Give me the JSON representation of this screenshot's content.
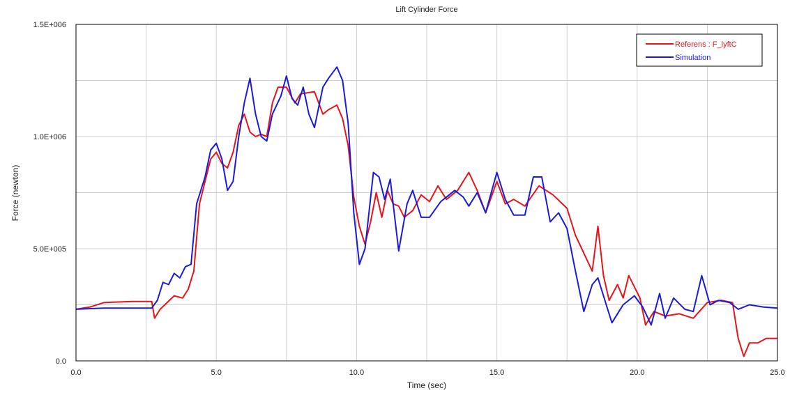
{
  "chart_data": {
    "type": "line",
    "title": "Lift Cylinder Force",
    "xlabel": "Time (sec)",
    "ylabel": "Force (newton)",
    "xlim": [
      0,
      25
    ],
    "ylim": [
      0,
      1500000
    ],
    "x_ticks": [
      0,
      5,
      10,
      15,
      20,
      25
    ],
    "x_tick_labels": [
      "0.0",
      "5.0",
      "10.0",
      "15.0",
      "20.0",
      "25.0"
    ],
    "y_ticks": [
      0,
      500000,
      1000000,
      1500000
    ],
    "y_tick_labels": [
      "0.0",
      "5.0E+005",
      "1.0E+006",
      "1.5E+006"
    ],
    "grid": true,
    "legend_position": "top-right",
    "series": [
      {
        "name": "Referens : F_lyftC",
        "color": "#e8141a",
        "points": [
          [
            0,
            230000
          ],
          [
            0.5,
            240000
          ],
          [
            1.0,
            260000
          ],
          [
            2.0,
            265000
          ],
          [
            2.7,
            265000
          ],
          [
            2.8,
            190000
          ],
          [
            3.0,
            230000
          ],
          [
            3.5,
            290000
          ],
          [
            3.8,
            280000
          ],
          [
            4.0,
            320000
          ],
          [
            4.2,
            400000
          ],
          [
            4.4,
            700000
          ],
          [
            4.6,
            800000
          ],
          [
            4.8,
            900000
          ],
          [
            5.0,
            930000
          ],
          [
            5.2,
            880000
          ],
          [
            5.4,
            860000
          ],
          [
            5.6,
            930000
          ],
          [
            5.8,
            1050000
          ],
          [
            6.0,
            1100000
          ],
          [
            6.2,
            1020000
          ],
          [
            6.4,
            1000000
          ],
          [
            6.6,
            1010000
          ],
          [
            6.8,
            1000000
          ],
          [
            7.0,
            1150000
          ],
          [
            7.2,
            1220000
          ],
          [
            7.5,
            1220000
          ],
          [
            7.8,
            1150000
          ],
          [
            8.0,
            1190000
          ],
          [
            8.5,
            1200000
          ],
          [
            8.8,
            1100000
          ],
          [
            9.0,
            1120000
          ],
          [
            9.3,
            1140000
          ],
          [
            9.5,
            1080000
          ],
          [
            9.7,
            960000
          ],
          [
            9.9,
            730000
          ],
          [
            10.1,
            600000
          ],
          [
            10.3,
            520000
          ],
          [
            10.5,
            620000
          ],
          [
            10.7,
            750000
          ],
          [
            10.9,
            640000
          ],
          [
            11.1,
            760000
          ],
          [
            11.3,
            700000
          ],
          [
            11.5,
            690000
          ],
          [
            11.7,
            640000
          ],
          [
            12.0,
            670000
          ],
          [
            12.3,
            740000
          ],
          [
            12.6,
            710000
          ],
          [
            12.9,
            780000
          ],
          [
            13.2,
            720000
          ],
          [
            13.6,
            760000
          ],
          [
            14.0,
            840000
          ],
          [
            14.3,
            760000
          ],
          [
            14.6,
            660000
          ],
          [
            15.0,
            800000
          ],
          [
            15.3,
            700000
          ],
          [
            15.6,
            720000
          ],
          [
            16.0,
            690000
          ],
          [
            16.5,
            780000
          ],
          [
            17.0,
            740000
          ],
          [
            17.5,
            680000
          ],
          [
            17.8,
            560000
          ],
          [
            18.1,
            480000
          ],
          [
            18.4,
            400000
          ],
          [
            18.6,
            600000
          ],
          [
            18.8,
            380000
          ],
          [
            19.0,
            270000
          ],
          [
            19.3,
            340000
          ],
          [
            19.5,
            280000
          ],
          [
            19.7,
            380000
          ],
          [
            19.9,
            330000
          ],
          [
            20.1,
            280000
          ],
          [
            20.3,
            160000
          ],
          [
            20.6,
            220000
          ],
          [
            21.0,
            200000
          ],
          [
            21.5,
            210000
          ],
          [
            22.0,
            190000
          ],
          [
            22.5,
            260000
          ],
          [
            23.0,
            270000
          ],
          [
            23.4,
            260000
          ],
          [
            23.6,
            100000
          ],
          [
            23.8,
            20000
          ],
          [
            24.0,
            80000
          ],
          [
            24.3,
            80000
          ],
          [
            24.6,
            100000
          ],
          [
            25.0,
            100000
          ]
        ]
      },
      {
        "name": "Simulation",
        "color": "#1a1adc",
        "points": [
          [
            0,
            230000
          ],
          [
            1.0,
            235000
          ],
          [
            2.0,
            235000
          ],
          [
            2.7,
            235000
          ],
          [
            2.9,
            270000
          ],
          [
            3.1,
            350000
          ],
          [
            3.3,
            340000
          ],
          [
            3.5,
            390000
          ],
          [
            3.7,
            370000
          ],
          [
            3.9,
            420000
          ],
          [
            4.1,
            430000
          ],
          [
            4.3,
            700000
          ],
          [
            4.6,
            820000
          ],
          [
            4.8,
            940000
          ],
          [
            5.0,
            970000
          ],
          [
            5.2,
            900000
          ],
          [
            5.4,
            760000
          ],
          [
            5.6,
            800000
          ],
          [
            5.8,
            1000000
          ],
          [
            6.0,
            1150000
          ],
          [
            6.2,
            1260000
          ],
          [
            6.4,
            1100000
          ],
          [
            6.6,
            1000000
          ],
          [
            6.8,
            980000
          ],
          [
            7.0,
            1100000
          ],
          [
            7.3,
            1180000
          ],
          [
            7.5,
            1270000
          ],
          [
            7.7,
            1170000
          ],
          [
            7.9,
            1140000
          ],
          [
            8.1,
            1220000
          ],
          [
            8.3,
            1100000
          ],
          [
            8.5,
            1040000
          ],
          [
            8.8,
            1220000
          ],
          [
            9.0,
            1260000
          ],
          [
            9.3,
            1310000
          ],
          [
            9.5,
            1250000
          ],
          [
            9.7,
            1060000
          ],
          [
            9.9,
            660000
          ],
          [
            10.1,
            430000
          ],
          [
            10.3,
            500000
          ],
          [
            10.6,
            840000
          ],
          [
            10.8,
            820000
          ],
          [
            11.0,
            720000
          ],
          [
            11.2,
            810000
          ],
          [
            11.5,
            490000
          ],
          [
            11.8,
            700000
          ],
          [
            12.0,
            760000
          ],
          [
            12.3,
            640000
          ],
          [
            12.6,
            640000
          ],
          [
            13.0,
            710000
          ],
          [
            13.5,
            760000
          ],
          [
            13.8,
            730000
          ],
          [
            14.0,
            690000
          ],
          [
            14.3,
            750000
          ],
          [
            14.6,
            660000
          ],
          [
            15.0,
            840000
          ],
          [
            15.3,
            720000
          ],
          [
            15.6,
            650000
          ],
          [
            16.0,
            650000
          ],
          [
            16.3,
            820000
          ],
          [
            16.6,
            820000
          ],
          [
            16.9,
            620000
          ],
          [
            17.2,
            660000
          ],
          [
            17.5,
            590000
          ],
          [
            17.8,
            400000
          ],
          [
            18.1,
            220000
          ],
          [
            18.4,
            340000
          ],
          [
            18.6,
            370000
          ],
          [
            18.9,
            250000
          ],
          [
            19.1,
            170000
          ],
          [
            19.5,
            250000
          ],
          [
            19.9,
            290000
          ],
          [
            20.2,
            240000
          ],
          [
            20.5,
            160000
          ],
          [
            20.8,
            300000
          ],
          [
            21.0,
            190000
          ],
          [
            21.3,
            280000
          ],
          [
            21.7,
            230000
          ],
          [
            22.0,
            220000
          ],
          [
            22.3,
            380000
          ],
          [
            22.6,
            250000
          ],
          [
            22.9,
            270000
          ],
          [
            23.3,
            260000
          ],
          [
            23.6,
            230000
          ],
          [
            24.0,
            250000
          ],
          [
            24.5,
            240000
          ],
          [
            25.0,
            235000
          ]
        ]
      }
    ]
  }
}
